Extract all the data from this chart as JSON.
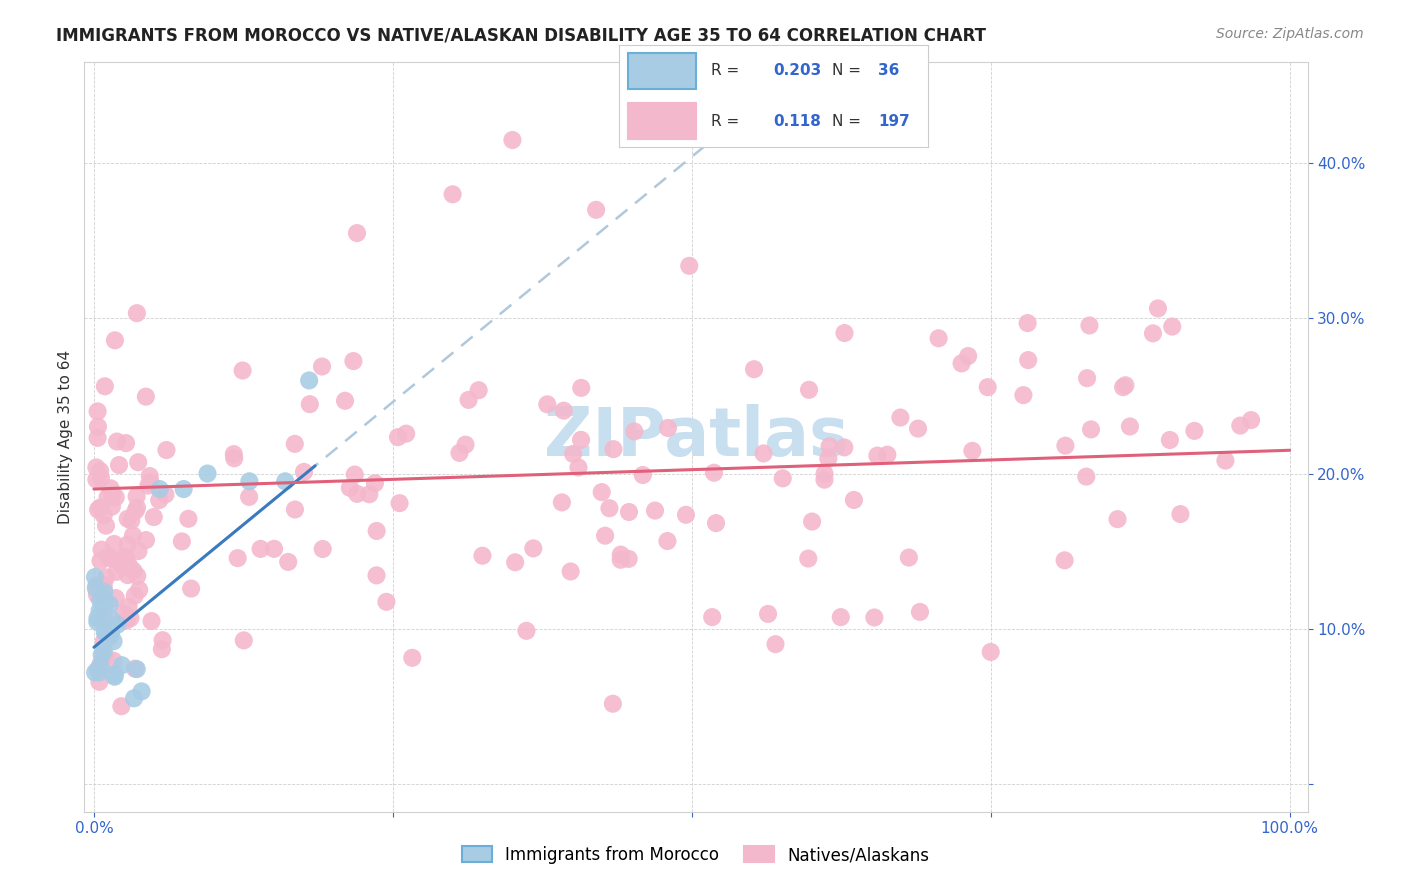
{
  "title": "IMMIGRANTS FROM MOROCCO VS NATIVE/ALASKAN DISABILITY AGE 35 TO 64 CORRELATION CHART",
  "source": "Source: ZipAtlas.com",
  "ylabel": "Disability Age 35 to 64",
  "legend1_label": "Immigrants from Morocco",
  "legend2_label": "Natives/Alaskans",
  "r1": 0.203,
  "n1": 36,
  "r2": 0.118,
  "n2": 197,
  "color_blue": "#a8cce4",
  "color_pink": "#f4b8cc",
  "color_blue_line": "#3a7abf",
  "color_pink_line": "#e0607a",
  "color_blue_dash": "#aac8e0",
  "watermark_color": "#c8dff0",
  "title_color": "#222222",
  "source_color": "#888888",
  "axis_label_color": "#3366cc",
  "ylabel_color": "#333333"
}
